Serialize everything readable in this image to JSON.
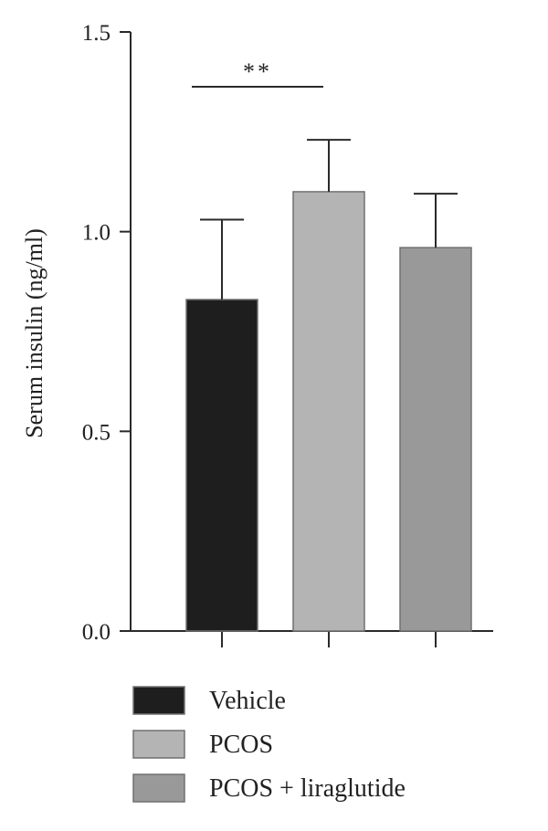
{
  "chart_data": {
    "type": "bar",
    "title": "",
    "xlabel": "",
    "ylabel": "Serum insulin (ng/ml)",
    "ylim": [
      0,
      1.5
    ],
    "yticks": [
      "0.0",
      "0.5",
      "1.0",
      "1.5"
    ],
    "grid": false,
    "legend_position": "bottom",
    "categories": [
      "Vehicle",
      "PCOS",
      "PCOS + liraglutide"
    ],
    "values": [
      0.83,
      1.1,
      0.96
    ],
    "errors": [
      0.2,
      0.13,
      0.135
    ],
    "colors": [
      "#1e1e1e",
      "#b4b4b4",
      "#999999"
    ],
    "significance": [
      {
        "from": 0,
        "to": 1,
        "label": "**"
      }
    ]
  }
}
